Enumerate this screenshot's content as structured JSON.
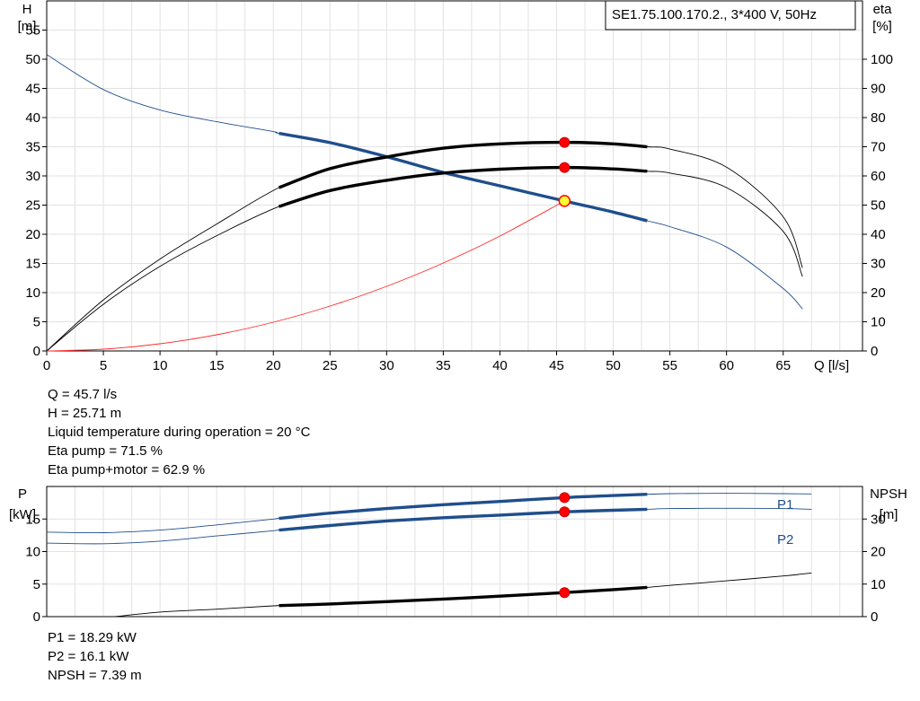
{
  "chart_data": [
    {
      "type": "line",
      "title": "SE1.75.100.170.2., 3*400 V, 50Hz",
      "xlabel": "Q [l/s]",
      "ylabel_left": [
        "H",
        "[m]"
      ],
      "ylabel_right": [
        "eta",
        "[%]"
      ],
      "xlim": [
        0,
        72
      ],
      "ylim_left": [
        0,
        60
      ],
      "ylim_right": [
        0,
        120
      ],
      "x_ticks": [
        "0",
        "5",
        "10",
        "15",
        "20",
        "25",
        "30",
        "35",
        "40",
        "45",
        "50",
        "55",
        "60",
        "65"
      ],
      "y_ticks_left": [
        "0",
        "5",
        "10",
        "15",
        "20",
        "25",
        "30",
        "35",
        "40",
        "45",
        "50",
        "55"
      ],
      "y_ticks_right": [
        "0",
        "10",
        "20",
        "30",
        "40",
        "50",
        "60",
        "70",
        "80",
        "90",
        "100"
      ],
      "grid": true,
      "series": [
        {
          "role": "head",
          "axis": "left",
          "color": "#1f4e8c",
          "x": [
            0,
            5,
            10,
            15,
            20,
            20.5,
            25,
            30,
            35,
            40,
            45.7,
            50,
            53,
            55,
            60,
            65,
            66.7
          ],
          "y": [
            50.8,
            44.8,
            41.3,
            39.3,
            37.6,
            37.3,
            35.7,
            33.3,
            30.6,
            28.3,
            25.7,
            23.8,
            22.3,
            21.3,
            17.8,
            10.7,
            7.2
          ],
          "op_range": [
            20.5,
            53
          ]
        },
        {
          "role": "eta pump",
          "axis": "right",
          "color": "#000000",
          "x": [
            0,
            5,
            10,
            15,
            20.5,
            25,
            30,
            35,
            40,
            45.7,
            50,
            53,
            55,
            60,
            65,
            66.7
          ],
          "y": [
            0,
            17.5,
            31.5,
            43.5,
            56,
            62.5,
            66.5,
            69.5,
            71,
            71.5,
            71,
            70,
            69.2,
            63,
            46,
            28.5
          ],
          "op_range": [
            20.5,
            53
          ]
        },
        {
          "role": "eta pump+motor",
          "axis": "right",
          "color": "#000000",
          "x": [
            0,
            5,
            10,
            15,
            20.5,
            25,
            30,
            35,
            40,
            45.7,
            50,
            53,
            55,
            60,
            65,
            66.7
          ],
          "y": [
            0,
            16,
            29,
            39.5,
            49.5,
            55,
            58.5,
            61,
            62.3,
            62.9,
            62.4,
            61.6,
            61,
            56,
            41,
            25.5
          ],
          "op_range": [
            20.5,
            53
          ]
        },
        {
          "role": "system curve",
          "axis": "left",
          "color": "#ff2a2a",
          "x": [
            0,
            5,
            10,
            15,
            20,
            25,
            30,
            35,
            40,
            45.7
          ],
          "y": [
            0,
            0.31,
            1.23,
            2.77,
            4.92,
            7.69,
            11.07,
            15.07,
            19.69,
            25.71
          ]
        }
      ],
      "operating_point": {
        "x": 45.7,
        "y": 25.71,
        "eta_pump": 71.5,
        "eta_motor": 62.9
      }
    },
    {
      "type": "line",
      "ylabel_left": [
        "P",
        "[kW]"
      ],
      "ylabel_right": [
        "NPSH",
        "[m]"
      ],
      "xlim": [
        0,
        72
      ],
      "ylim_left": [
        0,
        20
      ],
      "ylim_right": [
        0,
        40
      ],
      "y_ticks_left": [
        "0",
        "5",
        "10",
        "15"
      ],
      "y_ticks_right": [
        "0",
        "10",
        "20",
        "30"
      ],
      "grid": true,
      "series": [
        {
          "name": "P1",
          "axis": "left",
          "color": "#1f4e8c",
          "x": [
            0,
            5,
            10,
            15,
            20,
            20.5,
            25,
            30,
            35,
            40,
            45.7,
            50,
            53,
            55,
            60,
            65,
            67.5
          ],
          "y": [
            13,
            12.9,
            13.3,
            14.1,
            15,
            15.1,
            15.9,
            16.6,
            17.2,
            17.7,
            18.29,
            18.6,
            18.8,
            18.9,
            18.95,
            18.9,
            18.85
          ],
          "op_range": [
            20.5,
            53
          ]
        },
        {
          "name": "P2",
          "axis": "left",
          "color": "#1f4e8c",
          "x": [
            0,
            5,
            10,
            15,
            20,
            20.5,
            25,
            30,
            35,
            40,
            45.7,
            50,
            53,
            55,
            60,
            65,
            67.5
          ],
          "y": [
            11.3,
            11.2,
            11.6,
            12.4,
            13.2,
            13.3,
            14,
            14.7,
            15.2,
            15.6,
            16.1,
            16.35,
            16.5,
            16.6,
            16.65,
            16.6,
            16.5
          ],
          "op_range": [
            20.5,
            53
          ]
        },
        {
          "name": "NPSH",
          "axis": "right",
          "color": "#000000",
          "x": [
            6,
            10,
            15,
            20,
            20.5,
            25,
            30,
            35,
            40,
            45.7,
            50,
            53,
            55,
            60,
            65,
            67.5
          ],
          "y": [
            0,
            1.4,
            2.3,
            3.3,
            3.4,
            3.9,
            4.6,
            5.4,
            6.3,
            7.39,
            8.3,
            9,
            9.6,
            11,
            12.5,
            13.4
          ],
          "op_range": [
            20.5,
            53
          ]
        }
      ],
      "operating_point": {
        "x": 45.7,
        "p1": 18.29,
        "p2": 16.1,
        "npsh": 7.39
      }
    }
  ],
  "info_top": [
    "Q = 45.7 l/s",
    "H = 25.71 m",
    "Liquid temperature during operation = 20 °C",
    "Eta pump = 71.5 %",
    "Eta pump+motor = 62.9 %"
  ],
  "info_bottom": [
    "P1 = 18.29 kW",
    "P2 = 16.1 kW",
    "NPSH = 7.39 m"
  ]
}
